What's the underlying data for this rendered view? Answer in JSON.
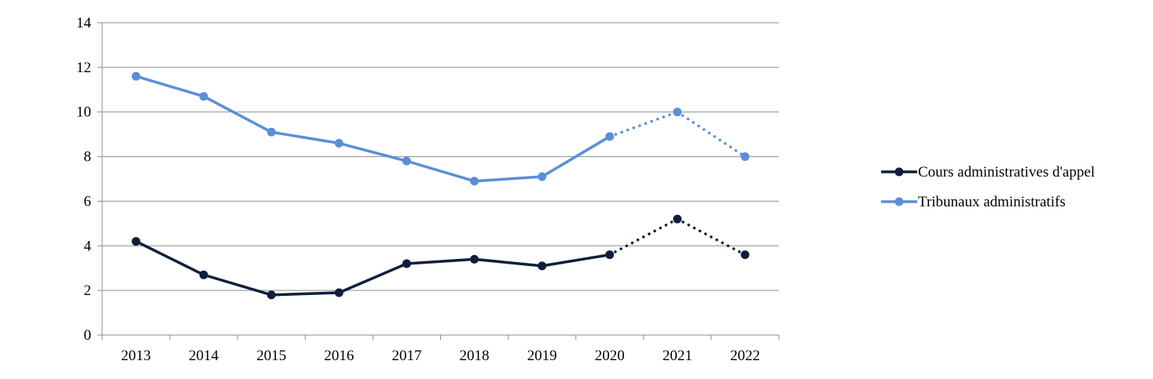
{
  "chart_data": {
    "type": "line",
    "title": "",
    "xlabel": "",
    "ylabel": "",
    "categories": [
      "2013",
      "2014",
      "2015",
      "2016",
      "2017",
      "2018",
      "2019",
      "2020",
      "2021",
      "2022"
    ],
    "ylim": [
      0,
      14
    ],
    "yticks": [
      0,
      2,
      4,
      6,
      8,
      10,
      12,
      14
    ],
    "grid": "horizontal",
    "legend_position": "right",
    "series": [
      {
        "name": "Cours administratives d'appel",
        "color": "#0e1f3b",
        "values": [
          4.2,
          2.7,
          1.8,
          1.9,
          3.2,
          3.4,
          3.1,
          3.6,
          5.2,
          3.6
        ],
        "dotted_from_index": 7
      },
      {
        "name": "Tribunaux administratifs",
        "color": "#5a8fd6",
        "values": [
          11.6,
          10.7,
          9.1,
          8.6,
          7.8,
          6.9,
          7.1,
          8.9,
          10.0,
          8.0
        ],
        "dotted_from_index": 7
      }
    ]
  }
}
